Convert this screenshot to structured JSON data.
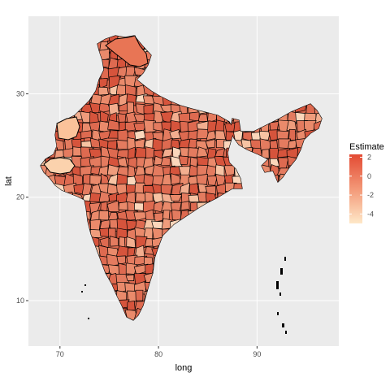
{
  "map": {
    "x_axis": {
      "title": "long",
      "ticks": [
        "70",
        "80",
        "90"
      ],
      "values": [
        70,
        80,
        90
      ],
      "range": [
        66.8,
        98.3
      ]
    },
    "y_axis": {
      "title": "lat",
      "ticks": [
        "10",
        "20",
        "30"
      ],
      "values": [
        10,
        20,
        30
      ],
      "range": [
        5.6,
        37.5
      ]
    },
    "legend": {
      "title": "Estimate",
      "ticks": [
        "2",
        "0",
        "-2",
        "-4"
      ],
      "values": [
        2,
        0,
        -2,
        -4
      ],
      "range": [
        -5,
        2.3
      ]
    },
    "colors": {
      "panel": "#ebebeb",
      "grid": "#ffffff",
      "high": "#e34a33",
      "low": "#fee8c8",
      "border": "#000000"
    }
  }
}
